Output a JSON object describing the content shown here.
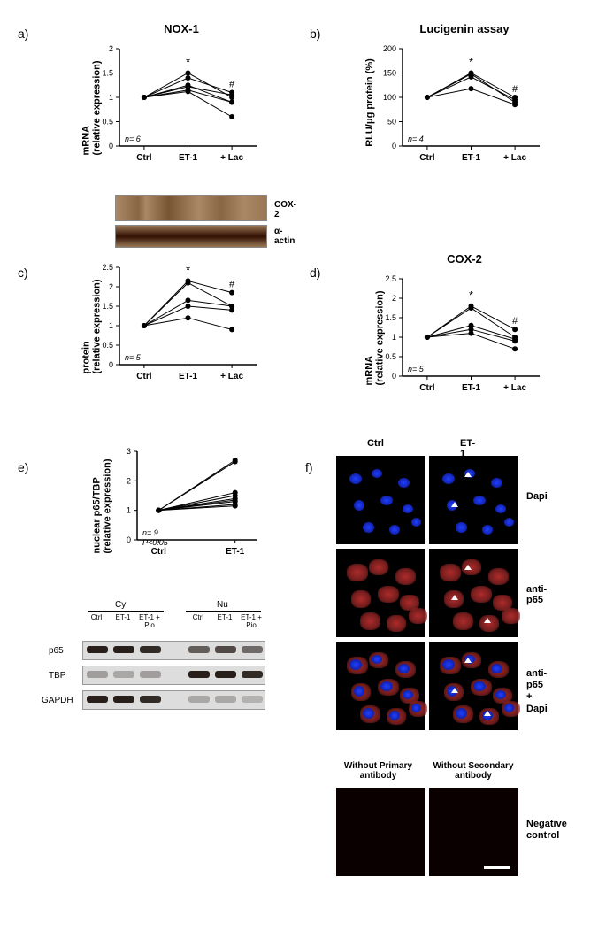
{
  "panel_a": {
    "label": "a)",
    "title": "NOX-1",
    "ylabel": "mRNA\n(relative expression)",
    "xlabels": [
      "Ctrl",
      "ET-1",
      "+ Lac"
    ],
    "ylim": [
      0,
      2.0
    ],
    "yticks": [
      0,
      0.5,
      1.0,
      1.5,
      2.0
    ],
    "n_label": "n= 6",
    "sig_et1": "*",
    "sig_lac": "#",
    "series": [
      [
        1.0,
        1.5,
        1.0
      ],
      [
        1.0,
        1.4,
        1.1
      ],
      [
        1.0,
        1.25,
        0.9
      ],
      [
        1.0,
        1.15,
        0.9
      ],
      [
        1.0,
        1.12,
        0.6
      ],
      [
        1.0,
        1.22,
        1.05
      ]
    ]
  },
  "panel_b": {
    "label": "b)",
    "title": "Lucigenin assay",
    "ylabel": "RLU/μg protein (%)",
    "xlabels": [
      "Ctrl",
      "ET-1",
      "+ Lac"
    ],
    "ylim": [
      0,
      200
    ],
    "yticks": [
      0,
      50,
      100,
      150,
      200
    ],
    "n_label": "n= 4",
    "sig_et1": "*",
    "sig_lac": "#",
    "series": [
      [
        100,
        150,
        100
      ],
      [
        100,
        148,
        90
      ],
      [
        100,
        142,
        95
      ],
      [
        100,
        118,
        85
      ]
    ]
  },
  "panel_c": {
    "label": "c)",
    "blot_labels": [
      "COX-2",
      "α-actin"
    ],
    "ylabel": "protein\n(relative expression)",
    "xlabels": [
      "Ctrl",
      "ET-1",
      "+ Lac"
    ],
    "ylim": [
      0,
      2.5
    ],
    "yticks": [
      0,
      0.5,
      1.0,
      1.5,
      2.0,
      2.5
    ],
    "n_label": "n= 5",
    "sig_et1": "*",
    "sig_lac": "#",
    "series": [
      [
        1.0,
        2.15,
        1.85
      ],
      [
        1.0,
        2.1,
        1.5
      ],
      [
        1.0,
        1.65,
        1.5
      ],
      [
        1.0,
        1.5,
        1.4
      ],
      [
        1.0,
        1.2,
        0.9
      ]
    ]
  },
  "panel_d": {
    "label": "d)",
    "title": "COX-2",
    "ylabel": "mRNA\n(relative expression)",
    "xlabels": [
      "Ctrl",
      "ET-1",
      "+ Lac"
    ],
    "ylim": [
      0,
      2.5
    ],
    "yticks": [
      0,
      0.5,
      1.0,
      1.5,
      2.0,
      2.5
    ],
    "n_label": "n= 5",
    "sig_et1": "*",
    "sig_lac": "#",
    "series": [
      [
        1.0,
        1.8,
        1.2
      ],
      [
        1.0,
        1.75,
        1.0
      ],
      [
        1.0,
        1.3,
        0.95
      ],
      [
        1.0,
        1.2,
        0.9
      ],
      [
        1.0,
        1.1,
        0.7
      ]
    ]
  },
  "panel_e": {
    "label": "e)",
    "ylabel": "nuclear p65/TBP\n(relative expression)",
    "xlabels": [
      "Ctrl",
      "ET-1"
    ],
    "ylim": [
      0,
      3
    ],
    "yticks": [
      0,
      1,
      2,
      3
    ],
    "n_label": "n= 9",
    "p_label": "P<0.05",
    "series": [
      [
        1.0,
        2.7
      ],
      [
        1.0,
        2.65
      ],
      [
        1.0,
        1.6
      ],
      [
        1.0,
        1.5
      ],
      [
        1.0,
        1.4
      ],
      [
        1.0,
        1.35
      ],
      [
        1.0,
        1.3
      ],
      [
        1.0,
        1.2
      ],
      [
        1.0,
        1.15
      ]
    ],
    "blot_group_labels": [
      "Cy",
      "Nu"
    ],
    "blot_col_labels": [
      "Ctrl",
      "ET-1",
      "ET-1 +\nPio",
      "Ctrl",
      "ET-1",
      "ET-1 +\nPio"
    ],
    "blot_row_labels": [
      "p65",
      "TBP",
      "GAPDH"
    ]
  },
  "panel_f": {
    "label": "f)",
    "col_labels": [
      "Ctrl",
      "ET-1"
    ],
    "row_labels": [
      "Dapi",
      "anti-p65",
      "anti-p65\n+\nDapi"
    ],
    "neg_col_labels": [
      "Without Primary\nantibody",
      "Without Secondary\nantibody"
    ],
    "neg_row_label": "Negative\ncontrol"
  }
}
